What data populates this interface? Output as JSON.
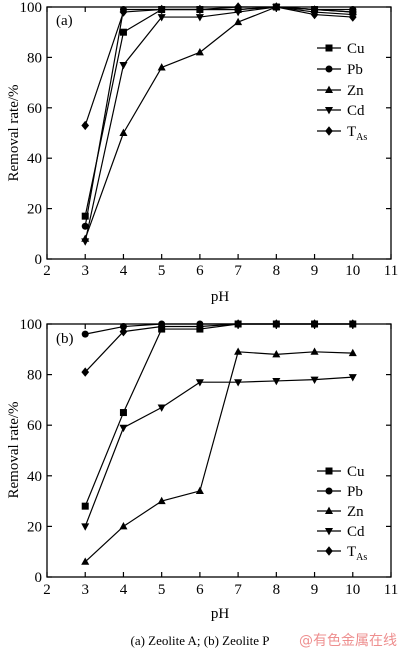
{
  "figure": {
    "caption": "(a) Zeolite A; (b) Zeolite P",
    "watermark": "@有色金属在线"
  },
  "colors": {
    "ink": "#000000",
    "background": "#ffffff",
    "watermark": "#ee8f8f"
  },
  "chart_data": [
    {
      "panel_label": "(a)",
      "type": "line",
      "xlabel": "pH",
      "ylabel": "Removal rate/%",
      "xlim": [
        2,
        11
      ],
      "ylim": [
        0,
        100
      ],
      "xticks": [
        2,
        3,
        4,
        5,
        6,
        7,
        8,
        9,
        10,
        11
      ],
      "yticks": [
        0,
        20,
        40,
        60,
        80,
        100
      ],
      "grid": false,
      "legend_position": "right",
      "x": [
        3,
        4,
        5,
        6,
        7,
        8,
        9,
        10
      ],
      "series": [
        {
          "name": "Cu",
          "marker": "square",
          "values": [
            17,
            90,
            99,
            99,
            99,
            100,
            99,
            98
          ]
        },
        {
          "name": "Pb",
          "marker": "circle",
          "values": [
            13,
            99,
            99,
            99,
            99,
            100,
            99,
            99
          ]
        },
        {
          "name": "Zn",
          "marker": "triangle-up",
          "values": [
            8,
            50,
            76,
            82,
            94,
            100,
            99,
            98
          ]
        },
        {
          "name": "Cd",
          "marker": "triangle-down",
          "values": [
            7,
            77,
            96,
            96,
            98,
            100,
            98,
            97
          ]
        },
        {
          "name": "T",
          "name_subscript": "As",
          "marker": "diamond",
          "values": [
            53,
            98,
            99,
            99,
            100,
            100,
            97,
            96
          ]
        }
      ]
    },
    {
      "panel_label": "(b)",
      "type": "line",
      "xlabel": "pH",
      "ylabel": "Removal rate/%",
      "xlim": [
        2,
        11
      ],
      "ylim": [
        0,
        100
      ],
      "xticks": [
        2,
        3,
        4,
        5,
        6,
        7,
        8,
        9,
        10,
        11
      ],
      "yticks": [
        0,
        20,
        40,
        60,
        80,
        100
      ],
      "grid": false,
      "legend_position": "right",
      "x": [
        3,
        4,
        5,
        6,
        7,
        8,
        9,
        10
      ],
      "series": [
        {
          "name": "Cu",
          "marker": "square",
          "values": [
            28,
            65,
            98,
            98,
            100,
            100,
            100,
            100
          ]
        },
        {
          "name": "Pb",
          "marker": "circle",
          "values": [
            96,
            99,
            100,
            100,
            100,
            100,
            100,
            100
          ]
        },
        {
          "name": "Zn",
          "marker": "triangle-up",
          "values": [
            6,
            20,
            30,
            34,
            89,
            88,
            89,
            88.5
          ]
        },
        {
          "name": "Cd",
          "marker": "triangle-down",
          "values": [
            20,
            59,
            67,
            77,
            77,
            77.5,
            78,
            79
          ]
        },
        {
          "name": "T",
          "name_subscript": "As",
          "marker": "diamond",
          "values": [
            81,
            97,
            99,
            99,
            100,
            100,
            100,
            100
          ]
        }
      ]
    }
  ]
}
